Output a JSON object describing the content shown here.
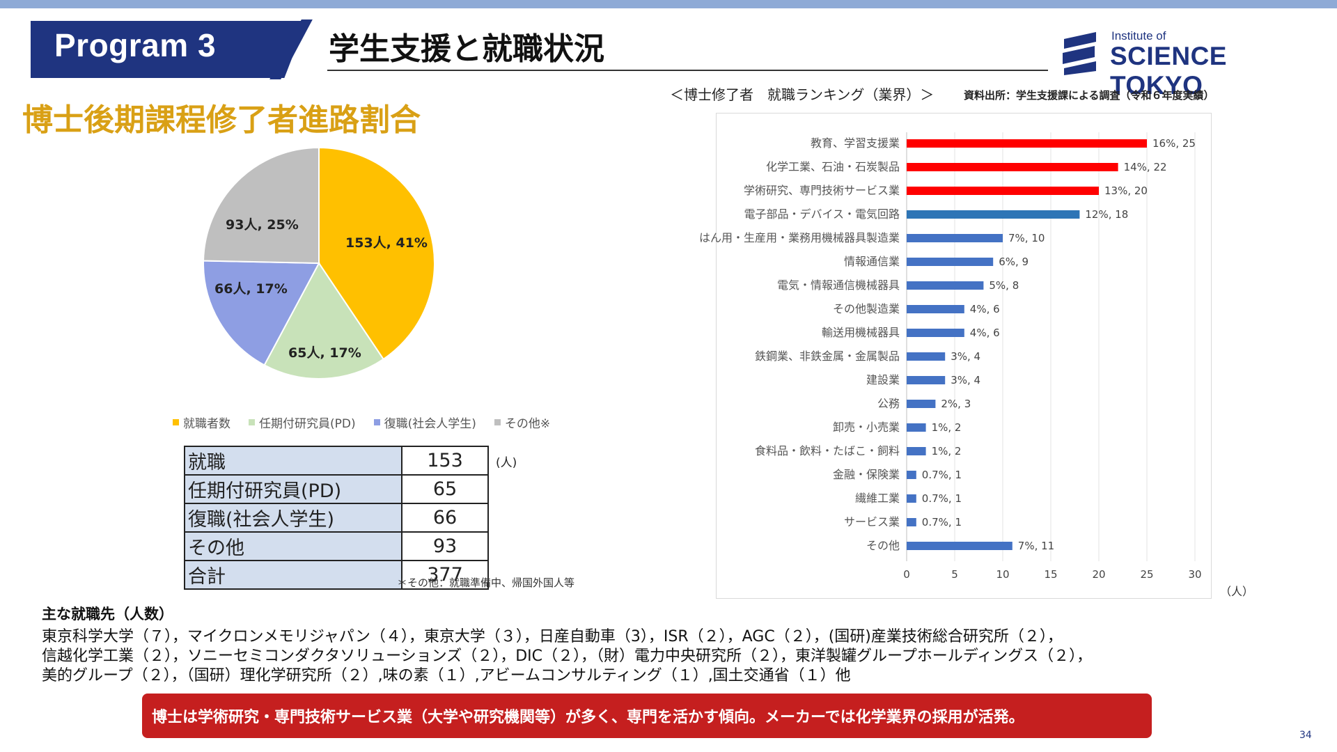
{
  "header": {
    "program_label": "Program 3",
    "title": "学生支援と就職状況",
    "logo_small": "Institute of",
    "logo_big": "SCIENCE TOKYO"
  },
  "section_title": "博士後期課程修了者進路割合",
  "pie": {
    "slices": [
      {
        "name": "就職者数",
        "count": 153,
        "label": "153人, 41%",
        "color": "#ffc000"
      },
      {
        "name": "任期付研究員(PD)",
        "count": 65,
        "label": "65人, 17%",
        "color": "#c8e2b9"
      },
      {
        "name": "復職(社会人学生)",
        "count": 66,
        "label": "66人, 17%",
        "color": "#8e9ee3"
      },
      {
        "name": "その他※",
        "count": 93,
        "label": "93人, 25%",
        "color": "#bfbfbf"
      }
    ]
  },
  "table": {
    "rows": [
      {
        "label": "就職",
        "value": "153"
      },
      {
        "label": "任期付研究員(PD)",
        "value": "65"
      },
      {
        "label": "復職(社会人学生)",
        "value": "66"
      },
      {
        "label": "その他",
        "value": "93"
      },
      {
        "label": "合計",
        "value": "377"
      }
    ],
    "unit": "(人)",
    "note": "＊その他：就職準備中、帰国外国人等"
  },
  "ranking": {
    "heading": "＜博士修了者　就職ランキング（業界）＞",
    "source": "資料出所：学生支援課による調査（令和６年度実績）",
    "axis_unit": "（人）"
  },
  "chart_data": {
    "type": "bar",
    "orientation": "horizontal",
    "title": "博士修了者　就職ランキング（業界）",
    "xlabel": "（人）",
    "xlim": [
      0,
      30
    ],
    "xticks": [
      0,
      5,
      10,
      15,
      20,
      25,
      30
    ],
    "grid": true,
    "categories": [
      "教育、学習支援業",
      "化学工業、石油・石炭製品",
      "学術研究、専門技術サービス業",
      "電子部品・デバイス・電気回路",
      "はん用・生産用・業務用機械器具製造業",
      "情報通信業",
      "電気・情報通信機械器具",
      "その他製造業",
      "輸送用機械器具",
      "鉄鋼業、非鉄金属・金属製品",
      "建設業",
      "公務",
      "卸売・小売業",
      "食料品・飲料・たばこ・飼料",
      "金融・保険業",
      "繊維工業",
      "サービス業",
      "その他"
    ],
    "values": [
      25,
      22,
      20,
      18,
      10,
      9,
      8,
      6,
      6,
      4,
      4,
      3,
      2,
      2,
      1,
      1,
      1,
      11
    ],
    "data_labels": [
      "16%, 25",
      "14%, 22",
      "13%, 20",
      "12%, 18",
      "7%, 10",
      "6%, 9",
      "5%, 8",
      "4%, 6",
      "4%, 6",
      "3%, 4",
      "3%, 4",
      "2%, 3",
      "1%, 2",
      "1%, 2",
      "0.7%, 1",
      "0.7%, 1",
      "0.7%, 1",
      "7%, 11"
    ],
    "bar_colors": [
      "#ff0000",
      "#ff0000",
      "#ff0000",
      "#2e75b6",
      "#4472c4",
      "#4472c4",
      "#4472c4",
      "#4472c4",
      "#4472c4",
      "#4472c4",
      "#4472c4",
      "#4472c4",
      "#4472c4",
      "#4472c4",
      "#4472c4",
      "#4472c4",
      "#4472c4",
      "#4472c4"
    ]
  },
  "employers": {
    "heading": "主な就職先（人数）",
    "lines": [
      "東京科学大学（７），マイクロンメモリジャパン（４），東京大学（３），日産自動車（3），ISR（２），AGC（２），(国研)産業技術総合研究所（２），",
      "信越化学工業（２），ソニーセミコンダクタソリューションズ（２），DIC（２），（財）電力中央研究所（２），東洋製罐グループホールディングス（２），",
      "美的グループ（２），（国研）理化学研究所（２）,味の素（１）,アビームコンサルティング（１）,国土交通省（１）他"
    ]
  },
  "banner": "博士は学術研究・専門技術サービス業（大学や研究機関等）が多く、専門を活かす傾向。メーカーでは化学業界の採用が活発。",
  "page_number": "34"
}
